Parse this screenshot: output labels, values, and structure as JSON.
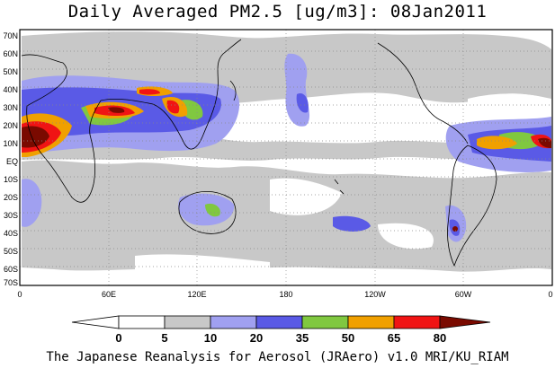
{
  "title": "Daily Averaged PM2.5 [ug/m3]: 08Jan2011",
  "credit": "The Japanese Reanalysis for Aerosol (JRAero) v1.0 MRI/KU_RIAM",
  "lat_labels": [
    "70N",
    "60N",
    "50N",
    "40N",
    "30N",
    "20N",
    "10N",
    "EQ",
    "10S",
    "20S",
    "30S",
    "40S",
    "50S",
    "60S",
    "70S"
  ],
  "lon_labels": [
    "0",
    "60E",
    "120E",
    "180",
    "120W",
    "60W",
    "0"
  ],
  "colorbar": {
    "labels": [
      "0",
      "5",
      "10",
      "20",
      "35",
      "50",
      "65",
      "80"
    ],
    "colors": [
      "#ffffff",
      "#c8c8c8",
      "#a0a0f0",
      "#5a5ae6",
      "#80c840",
      "#f0a000",
      "#f01414",
      "#7a0a00"
    ]
  },
  "legend_bins": [
    {
      "range": "0-5",
      "color": "#ffffff"
    },
    {
      "range": "5-10",
      "color": "#c8c8c8"
    },
    {
      "range": "10-20",
      "color": "#a0a0f0"
    },
    {
      "range": "20-35",
      "color": "#5a5ae6"
    },
    {
      "range": "35-50",
      "color": "#80c840"
    },
    {
      "range": "50-65",
      "color": "#f0a000"
    },
    {
      "range": "65-80",
      "color": "#f01414"
    },
    {
      "range": ">80",
      "color": "#7a0a00"
    }
  ]
}
